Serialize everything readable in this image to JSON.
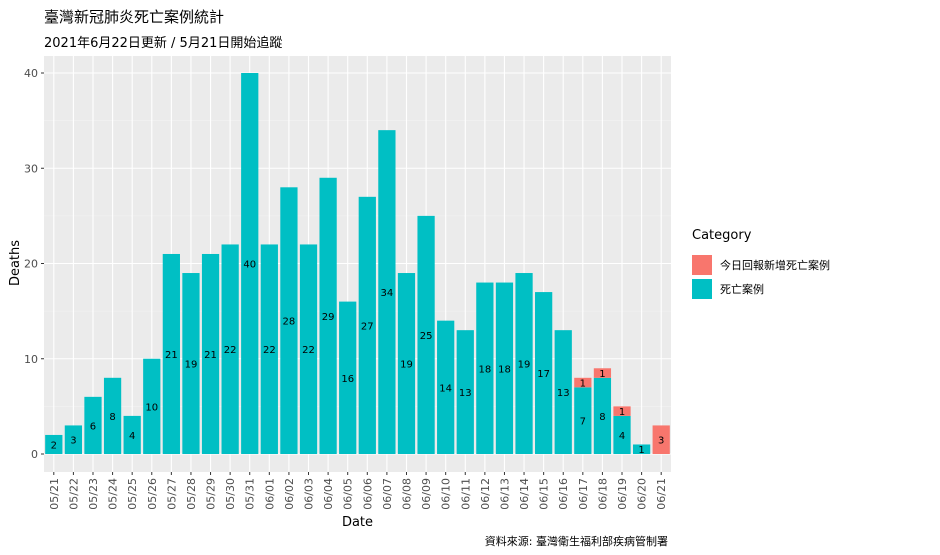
{
  "title": "臺灣新冠肺炎死亡案例統計",
  "subtitle": "2021年6月22日更新 / 5月21日開始追蹤",
  "caption": "資料來源: 臺灣衛生福利部疾病管制署",
  "legend": {
    "title": "Category",
    "items": [
      {
        "label": "今日回報新增死亡案例",
        "color": "#F8766D"
      },
      {
        "label": "死亡案例",
        "color": "#00BFC4"
      }
    ]
  },
  "chart_data": {
    "type": "bar",
    "stacked": true,
    "xlabel": "Date",
    "ylabel": "Deaths",
    "ylim": [
      0,
      42
    ],
    "yticks": [
      0,
      10,
      20,
      30,
      40
    ],
    "grid": true,
    "legend_position": "right",
    "categories": [
      "05/21",
      "05/22",
      "05/23",
      "05/24",
      "05/25",
      "05/26",
      "05/27",
      "05/28",
      "05/29",
      "05/30",
      "05/31",
      "06/01",
      "06/02",
      "06/03",
      "06/04",
      "06/05",
      "06/06",
      "06/07",
      "06/08",
      "06/09",
      "06/10",
      "06/11",
      "06/12",
      "06/13",
      "06/14",
      "06/15",
      "06/16",
      "06/17",
      "06/18",
      "06/19",
      "06/20",
      "06/21"
    ],
    "series": [
      {
        "name": "死亡案例",
        "color": "#00BFC4",
        "values": [
          2,
          3,
          6,
          8,
          4,
          10,
          21,
          19,
          21,
          22,
          40,
          22,
          28,
          22,
          29,
          16,
          27,
          34,
          19,
          25,
          14,
          13,
          18,
          18,
          19,
          17,
          13,
          7,
          8,
          4,
          1,
          0
        ]
      },
      {
        "name": "今日回報新增死亡案例",
        "color": "#F8766D",
        "values": [
          0,
          0,
          0,
          0,
          0,
          0,
          0,
          0,
          0,
          0,
          0,
          0,
          0,
          0,
          0,
          0,
          0,
          0,
          0,
          0,
          0,
          0,
          0,
          0,
          0,
          0,
          0,
          1,
          1,
          1,
          0,
          3
        ]
      }
    ]
  }
}
